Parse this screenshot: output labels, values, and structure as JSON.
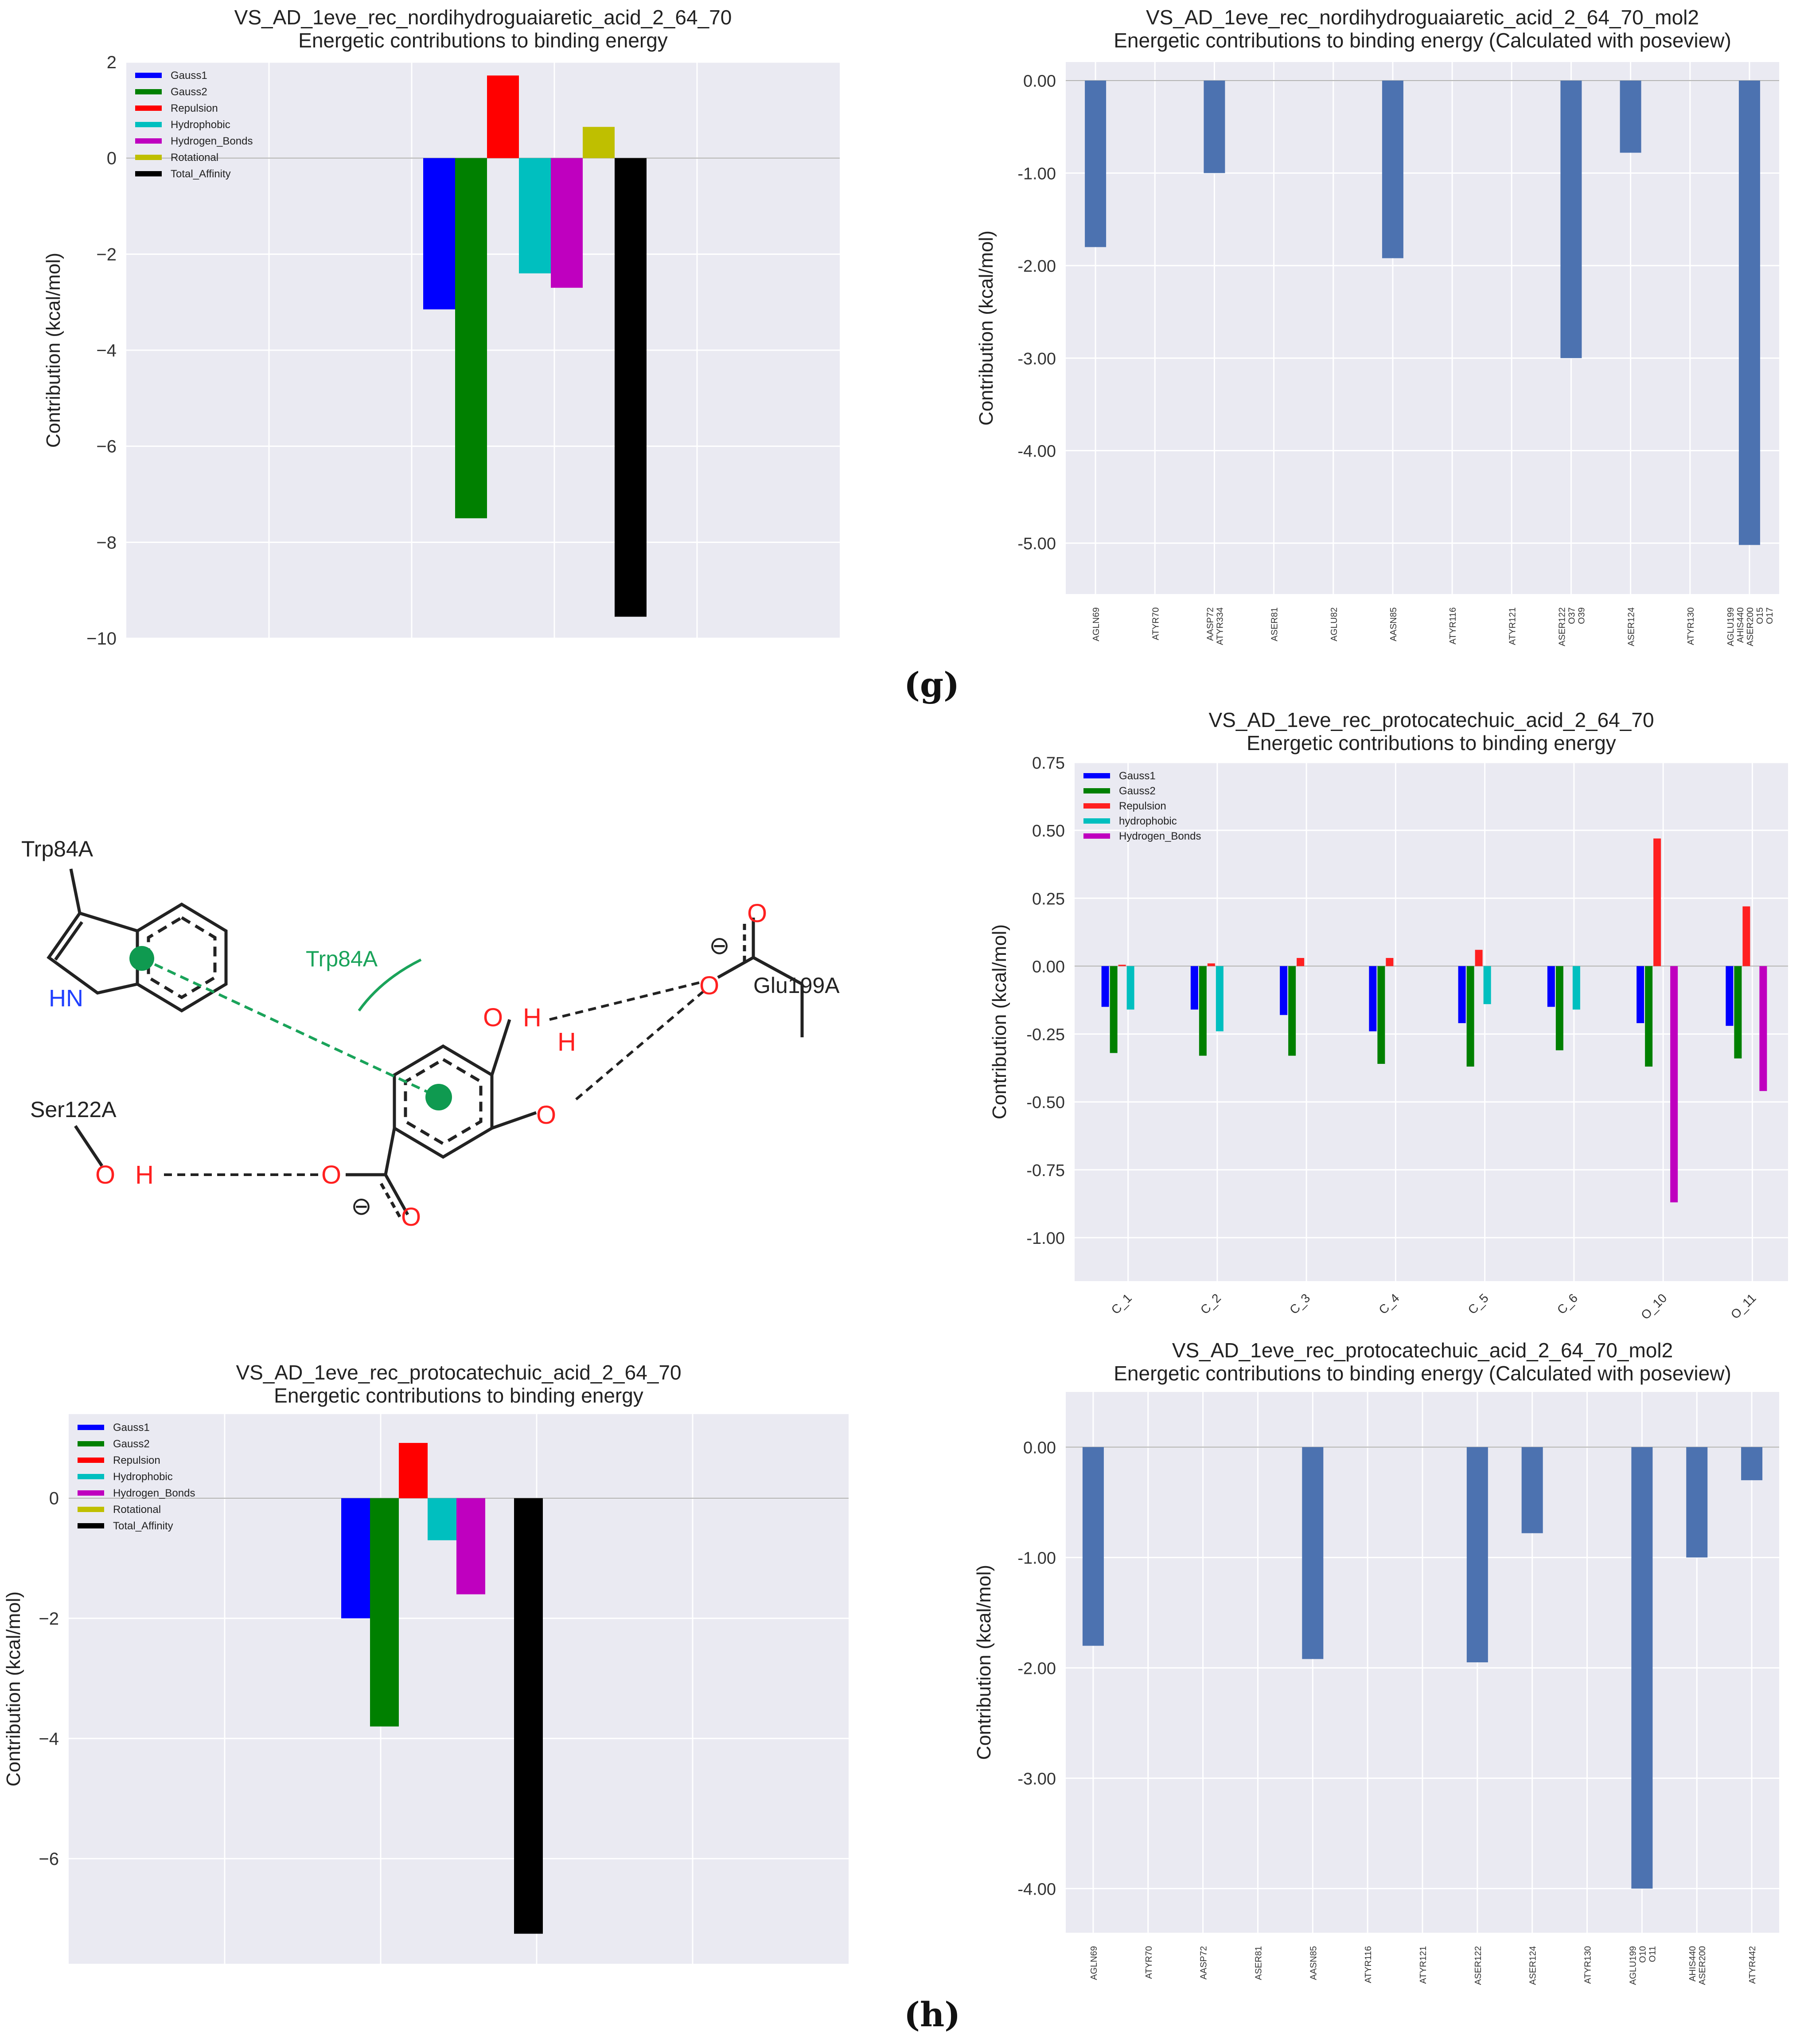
{
  "panel_labels": {
    "g": "(g)",
    "h": "(h)"
  },
  "molecule": {
    "trp_label": "Trp84A",
    "trp_interaction_label": "Trp84A",
    "hn": "HN",
    "glu_label": "Glu199A",
    "ser_label": "Ser122A",
    "oh_top_o": "O",
    "oh_top_h": "H",
    "oh_mid_h": "H",
    "oh_mid_o": "O",
    "glu_o1": "O",
    "glu_o2": "O",
    "ser_o": "O",
    "ser_h": "H",
    "carb_o1": "O",
    "carb_o2": "O",
    "minus": "⊖",
    "colors": {
      "interaction": "#1aa35a",
      "oxygen": "#ff2020",
      "nitrogen": "#2040ff",
      "bond": "#222222"
    }
  },
  "chart_data": [
    {
      "id": "g_energy",
      "type": "bar",
      "title": "VS_AD_1eve_rec_nordihydroguaiaretic_acid_2_64_70",
      "subtitle": "Energetic contributions to binding energy",
      "xlabel": "",
      "ylabel": "Contribution (kcal/mol)",
      "ylim": [
        -10,
        2
      ],
      "yticks": [
        2,
        0,
        -2,
        -4,
        -6,
        -8,
        -10
      ],
      "ytick_labels": [
        "2",
        "0",
        "−2",
        "−4",
        "−6",
        "−8",
        "−10"
      ],
      "legend_position": "top-left",
      "series": [
        {
          "name": "Gauss1",
          "value": -3.15,
          "color": "#0000ff"
        },
        {
          "name": "Gauss2",
          "value": -7.5,
          "color": "#008000"
        },
        {
          "name": "Repulsion",
          "value": 1.72,
          "color": "#ff0000"
        },
        {
          "name": "Hydrophobic",
          "value": -2.4,
          "color": "#00bfbf"
        },
        {
          "name": "Hydrogen_Bonds",
          "value": -2.7,
          "color": "#bf00bf"
        },
        {
          "name": "Rotational",
          "value": 0.65,
          "color": "#bfbf00"
        },
        {
          "name": "Total_Affinity",
          "value": -9.55,
          "color": "#000000"
        }
      ]
    },
    {
      "id": "g_poseview",
      "type": "bar",
      "title": "VS_AD_1eve_rec_nordihydroguaiaretic_acid_2_64_70_mol2",
      "subtitle": "Energetic contributions to binding energy (Calculated with poseview)",
      "xlabel": "",
      "ylabel": "Contribution (kcal/mol)",
      "ylim": [
        -5.55,
        0.2
      ],
      "yticks": [
        0,
        -1,
        -2,
        -3,
        -4,
        -5
      ],
      "ytick_labels": [
        "0.00",
        "-1.00",
        "-2.00",
        "-3.00",
        "-4.00",
        "-5.00"
      ],
      "categories": [
        "AGLN69",
        "ATYR70",
        "AASP72\nATYR334",
        "ASER81",
        "AGLU82",
        "AASN85",
        "ATYR116",
        "ATYR121",
        "ASER122\nO37\nO39",
        "ASER124",
        "ATYR130",
        "AGLU199\nAHIS440\nASER200\nO15\nO17"
      ],
      "values": [
        -1.8,
        0,
        -1.0,
        0,
        0,
        -1.92,
        0,
        0,
        -3.0,
        -0.78,
        0,
        -5.02
      ],
      "color": "#4c72b0"
    },
    {
      "id": "h_atoms",
      "type": "bar",
      "title": "VS_AD_1eve_rec_protocatechuic_acid_2_64_70",
      "subtitle": "Energetic contributions to binding energy",
      "xlabel": "",
      "ylabel": "Contribution (kcal/mol)",
      "ylim": [
        -1.16,
        0.75
      ],
      "yticks": [
        0.75,
        0.5,
        0.25,
        0,
        -0.25,
        -0.5,
        -0.75,
        -1.0
      ],
      "ytick_labels": [
        "0.75",
        "0.50",
        "0.25",
        "0.00",
        "-0.25",
        "-0.50",
        "-0.75",
        "-1.00"
      ],
      "legend_position": "top-left",
      "categories": [
        "C_1",
        "C_2",
        "C_3",
        "C_4",
        "C_5",
        "C_6",
        "O_10",
        "O_11"
      ],
      "series": [
        {
          "name": "Gauss1",
          "color": "#0000ff",
          "values": [
            -0.15,
            -0.16,
            -0.18,
            -0.24,
            -0.21,
            -0.15,
            -0.21,
            -0.22
          ]
        },
        {
          "name": "Gauss2",
          "color": "#008000",
          "values": [
            -0.32,
            -0.33,
            -0.33,
            -0.36,
            -0.37,
            -0.31,
            -0.37,
            -0.34
          ]
        },
        {
          "name": "Repulsion",
          "color": "#ff2020",
          "values": [
            0.005,
            0.01,
            0.03,
            0.03,
            0.06,
            0.0,
            0.47,
            0.22
          ]
        },
        {
          "name": "hydrophobic",
          "color": "#00bfbf",
          "values": [
            -0.16,
            -0.24,
            0,
            0,
            -0.14,
            -0.16,
            0,
            0
          ]
        },
        {
          "name": "Hydrogen_Bonds",
          "color": "#bf00bf",
          "values": [
            0,
            0,
            0,
            0,
            0,
            0,
            -0.87,
            -0.46
          ]
        }
      ]
    },
    {
      "id": "h_energy",
      "type": "bar",
      "title": "VS_AD_1eve_rec_protocatechuic_acid_2_64_70",
      "subtitle": "Energetic contributions to binding energy",
      "xlabel": "",
      "ylabel": "Contribution (kcal/mol)",
      "ylim": [
        -7.75,
        1.4
      ],
      "yticks": [
        0,
        -2,
        -4,
        -6
      ],
      "ytick_labels": [
        "0",
        "−2",
        "−4",
        "−6"
      ],
      "legend_position": "top-left",
      "series": [
        {
          "name": "Gauss1",
          "value": -2.0,
          "color": "#0000ff"
        },
        {
          "name": "Gauss2",
          "value": -3.8,
          "color": "#008000"
        },
        {
          "name": "Repulsion",
          "value": 0.92,
          "color": "#ff0000"
        },
        {
          "name": "Hydrophobic",
          "value": -0.7,
          "color": "#00bfbf"
        },
        {
          "name": "Hydrogen_Bonds",
          "value": -1.6,
          "color": "#bf00bf"
        },
        {
          "name": "Rotational",
          "value": 0,
          "color": "#bfbf00"
        },
        {
          "name": "Total_Affinity",
          "value": -7.25,
          "color": "#000000"
        }
      ]
    },
    {
      "id": "h_poseview",
      "type": "bar",
      "title": "VS_AD_1eve_rec_protocatechuic_acid_2_64_70_mol2",
      "subtitle": "Energetic contributions to binding energy (Calculated with poseview)",
      "xlabel": "",
      "ylabel": "Contribution (kcal/mol)",
      "ylim": [
        -4.4,
        0.5
      ],
      "yticks": [
        0,
        -1,
        -2,
        -3,
        -4
      ],
      "ytick_labels": [
        "0.00",
        "-1.00",
        "-2.00",
        "-3.00",
        "-4.00"
      ],
      "categories": [
        "AGLN69",
        "ATYR70",
        "AASP72",
        "ASER81",
        "AASN85",
        "ATYR116",
        "ATYR121",
        "ASER122",
        "ASER124",
        "ATYR130",
        "AGLU199\nO10\nO11",
        "AHIS440\nASER200",
        "ATYR442"
      ],
      "values": [
        -1.8,
        0,
        0,
        0,
        -1.92,
        0,
        0,
        -1.95,
        -0.78,
        0,
        -4.0,
        -1.0,
        -0.3
      ],
      "color": "#4c72b0"
    }
  ]
}
